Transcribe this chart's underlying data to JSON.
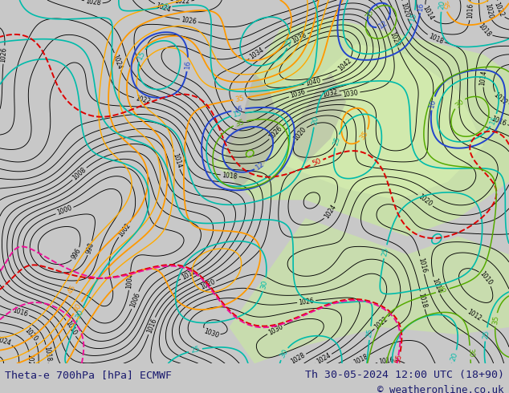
{
  "title_left": "Theta-e 700hPa [hPa] ECMWF",
  "title_right": "Th 30-05-2024 12:00 UTC (18+90)",
  "copyright": "© weatheronline.co.uk",
  "bg_color": "#c8c8c8",
  "map_bg": "#f0f0ee",
  "figsize": [
    6.34,
    4.9
  ],
  "dpi": 100,
  "text_color": "#1a1a6e",
  "title_fontsize": 9.5,
  "copyright_fontsize": 9.0
}
